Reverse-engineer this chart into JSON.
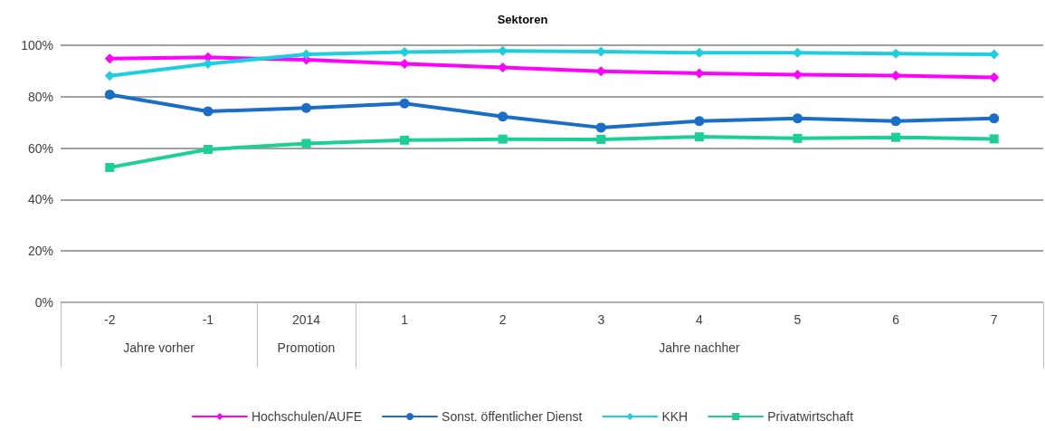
{
  "chart_data": {
    "type": "line",
    "title": "Sektoren",
    "categories": [
      "-2",
      "-1",
      "2014",
      "1",
      "2",
      "3",
      "4",
      "5",
      "6",
      "7"
    ],
    "series": [
      {
        "name": "Hochschulen/AUFE",
        "color": "#ff00ff",
        "marker": "diamond",
        "values": [
          94.8,
          95.3,
          94.4,
          92.8,
          91.4,
          89.9,
          89.1,
          88.6,
          88.2,
          87.5
        ]
      },
      {
        "name": "Sonst. öffentlicher Dienst",
        "color": "#1a6ec8",
        "marker": "circle",
        "values": [
          80.8,
          74.3,
          75.6,
          77.4,
          72.3,
          68.0,
          70.5,
          71.6,
          70.5,
          71.6
        ]
      },
      {
        "name": "KKH",
        "color": "#1ccfdf",
        "marker": "diamond",
        "values": [
          88.1,
          92.8,
          96.5,
          97.4,
          97.8,
          97.5,
          97.1,
          97.1,
          96.7,
          96.5
        ]
      },
      {
        "name": "Privatwirtschaft",
        "color": "#1ccf95",
        "marker": "square",
        "values": [
          52.5,
          59.5,
          61.8,
          63.1,
          63.5,
          63.4,
          64.4,
          63.8,
          64.2,
          63.6
        ]
      }
    ],
    "annotations": [
      "Jahre vorher",
      "Promotion",
      "Jahre nachher"
    ],
    "ylim": [
      0,
      100
    ],
    "yticks": [
      {
        "value": 0,
        "label": "0%"
      },
      {
        "value": 20,
        "label": "20%"
      },
      {
        "value": 40,
        "label": "40%"
      },
      {
        "value": 60,
        "label": "60%"
      },
      {
        "value": 80,
        "label": "80%"
      },
      {
        "value": 100,
        "label": "100%"
      }
    ],
    "grid": "y",
    "legend": "bottom",
    "line_style": "solid"
  }
}
